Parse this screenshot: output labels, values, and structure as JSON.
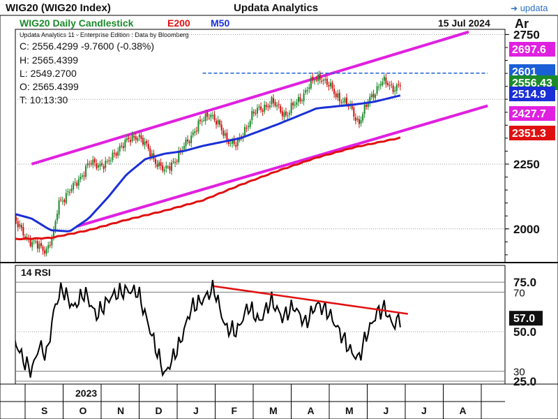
{
  "window": {
    "title": "WIG20 (WIG20 Index)",
    "app_name": "Updata Analytics",
    "brand": "updata",
    "brand_icon": "updata-arrow-icon"
  },
  "header": {
    "chart_title": "WIG20 Daily Candlestick",
    "ema_label": "E200",
    "ma_label": "M50",
    "date": "15 Jul 2024",
    "axis_unit": "Ar",
    "source": "Updata Analytics 11 - Enterprise Edition : Data by Bloomberg"
  },
  "ohlc": {
    "close": "C: 2556.4299  -9.7600 (-0.38%)",
    "high": "H: 2565.4399",
    "low": "L: 2549.2700",
    "open": "O: 2565.4399",
    "time": "T: 10:13:30"
  },
  "price_tags": [
    {
      "label": "2697.6",
      "color": "#e020e0",
      "text_color": "#ffffff",
      "value": 2697.6
    },
    {
      "label": "2601",
      "color": "#1a5fd6",
      "text_color": "#ffffff",
      "value": 2601
    },
    {
      "label": "2556.43",
      "color": "#1a8a2a",
      "text_color": "#ffffff",
      "value": 2556.43
    },
    {
      "label": "2514.9",
      "color": "#1a2fd6",
      "text_color": "#ffffff",
      "value": 2514.9
    },
    {
      "label": "2427.7",
      "color": "#e020e0",
      "text_color": "#ffffff",
      "value": 2427.7
    },
    {
      "label": "2351.3",
      "color": "#e01010",
      "text_color": "#ffffff",
      "value": 2351.3
    }
  ],
  "rsi_panel": {
    "label": "14 RSI",
    "tag": "57.0",
    "tag_color": "#111111"
  },
  "year_label": "2023",
  "colors": {
    "up": "#1a8a2a",
    "down": "#d01010",
    "ema": "#e01010",
    "ma": "#1a2fd6",
    "channel": "#e020e0",
    "resistance": "#1a5fd6",
    "rsi_trend": "#e01010"
  },
  "chart_data": [
    {
      "type": "candlestick",
      "title": "WIG20 Daily Candlestick",
      "y_axis": {
        "ticks": [
          "2750",
          "2250",
          "2000"
        ],
        "tick_values": [
          2750,
          2250,
          2000
        ],
        "ylim": [
          1870,
          2770
        ]
      },
      "x_axis": {
        "month_labels": [
          "S",
          "O",
          "N",
          "D",
          "J",
          "F",
          "M",
          "A",
          "M",
          "J",
          "J",
          "A"
        ]
      },
      "close_anchors": [
        {
          "m": 0,
          "v": 2040
        },
        {
          "m": 0.5,
          "v": 1945
        },
        {
          "m": 0.9,
          "v": 1920
        },
        {
          "m": 1.1,
          "v": 1985
        },
        {
          "m": 1.2,
          "v": 2100
        },
        {
          "m": 1.6,
          "v": 2160
        },
        {
          "m": 2.0,
          "v": 2250
        },
        {
          "m": 2.5,
          "v": 2250
        },
        {
          "m": 2.8,
          "v": 2315
        },
        {
          "m": 3.3,
          "v": 2365
        },
        {
          "m": 3.7,
          "v": 2275
        },
        {
          "m": 4.0,
          "v": 2220
        },
        {
          "m": 4.4,
          "v": 2290
        },
        {
          "m": 4.8,
          "v": 2385
        },
        {
          "m": 5.2,
          "v": 2450
        },
        {
          "m": 5.6,
          "v": 2355
        },
        {
          "m": 5.9,
          "v": 2320
        },
        {
          "m": 6.3,
          "v": 2440
        },
        {
          "m": 6.8,
          "v": 2490
        },
        {
          "m": 7.2,
          "v": 2440
        },
        {
          "m": 7.6,
          "v": 2510
        },
        {
          "m": 7.9,
          "v": 2570
        },
        {
          "m": 8.1,
          "v": 2590
        },
        {
          "m": 8.5,
          "v": 2520
        },
        {
          "m": 8.9,
          "v": 2465
        },
        {
          "m": 9.1,
          "v": 2410
        },
        {
          "m": 9.4,
          "v": 2500
        },
        {
          "m": 9.7,
          "v": 2570
        },
        {
          "m": 10.0,
          "v": 2545
        },
        {
          "m": 10.2,
          "v": 2556
        }
      ],
      "series": [
        {
          "name": "E200",
          "points": [
            {
              "m": 0,
              "v": 1960
            },
            {
              "m": 1,
              "v": 1965
            },
            {
              "m": 2,
              "v": 1995
            },
            {
              "m": 3,
              "v": 2035
            },
            {
              "m": 4,
              "v": 2070
            },
            {
              "m": 5,
              "v": 2110
            },
            {
              "m": 6,
              "v": 2170
            },
            {
              "m": 7,
              "v": 2225
            },
            {
              "m": 8,
              "v": 2275
            },
            {
              "m": 9,
              "v": 2315
            },
            {
              "m": 10.2,
              "v": 2351.3
            }
          ]
        },
        {
          "name": "M50",
          "points": [
            {
              "m": 0,
              "v": 2060
            },
            {
              "m": 0.5,
              "v": 2040
            },
            {
              "m": 1,
              "v": 1995
            },
            {
              "m": 1.5,
              "v": 1990
            },
            {
              "m": 2,
              "v": 2040
            },
            {
              "m": 2.5,
              "v": 2120
            },
            {
              "m": 3,
              "v": 2210
            },
            {
              "m": 3.5,
              "v": 2270
            },
            {
              "m": 4,
              "v": 2290
            },
            {
              "m": 4.5,
              "v": 2300
            },
            {
              "m": 5,
              "v": 2320
            },
            {
              "m": 6,
              "v": 2350
            },
            {
              "m": 7,
              "v": 2405
            },
            {
              "m": 8,
              "v": 2465
            },
            {
              "m": 9,
              "v": 2480
            },
            {
              "m": 9.5,
              "v": 2490
            },
            {
              "m": 10.2,
              "v": 2514.9
            }
          ]
        }
      ],
      "channel": {
        "upper": [
          {
            "m": 0.5,
            "v": 2250
          },
          {
            "m": 12.0,
            "v": 2760
          }
        ],
        "lower": [
          {
            "m": 1.7,
            "v": 2010
          },
          {
            "m": 12.5,
            "v": 2475
          }
        ]
      },
      "resistance": {
        "v": 2601,
        "from_m": 5.0,
        "to_m": 12.5
      }
    },
    {
      "type": "line",
      "title": "14 RSI",
      "y_axis": {
        "ticks": [
          "75.0",
          "70",
          "50.0",
          "30",
          "25.0"
        ],
        "tick_values": [
          75,
          70,
          50,
          30,
          25
        ],
        "ylim": [
          20,
          80
        ]
      },
      "rsi_anchors": [
        {
          "m": 0,
          "v": 48
        },
        {
          "m": 0.3,
          "v": 35
        },
        {
          "m": 0.5,
          "v": 30
        },
        {
          "m": 0.7,
          "v": 43
        },
        {
          "m": 0.9,
          "v": 38
        },
        {
          "m": 1.1,
          "v": 62
        },
        {
          "m": 1.3,
          "v": 72
        },
        {
          "m": 1.6,
          "v": 62
        },
        {
          "m": 1.9,
          "v": 70
        },
        {
          "m": 2.2,
          "v": 58
        },
        {
          "m": 2.6,
          "v": 68
        },
        {
          "m": 3.0,
          "v": 71
        },
        {
          "m": 3.3,
          "v": 70
        },
        {
          "m": 3.6,
          "v": 52
        },
        {
          "m": 4.0,
          "v": 28
        },
        {
          "m": 4.4,
          "v": 44
        },
        {
          "m": 4.7,
          "v": 62
        },
        {
          "m": 5.0,
          "v": 66
        },
        {
          "m": 5.3,
          "v": 72
        },
        {
          "m": 5.6,
          "v": 52
        },
        {
          "m": 5.9,
          "v": 50
        },
        {
          "m": 6.2,
          "v": 63
        },
        {
          "m": 6.5,
          "v": 55
        },
        {
          "m": 6.8,
          "v": 66
        },
        {
          "m": 7.1,
          "v": 57
        },
        {
          "m": 7.4,
          "v": 63
        },
        {
          "m": 7.7,
          "v": 54
        },
        {
          "m": 8.0,
          "v": 64
        },
        {
          "m": 8.3,
          "v": 60
        },
        {
          "m": 8.6,
          "v": 50
        },
        {
          "m": 8.9,
          "v": 40
        },
        {
          "m": 9.1,
          "v": 36
        },
        {
          "m": 9.3,
          "v": 48
        },
        {
          "m": 9.6,
          "v": 60
        },
        {
          "m": 9.8,
          "v": 62
        },
        {
          "m": 10.0,
          "v": 53
        },
        {
          "m": 10.2,
          "v": 57
        }
      ],
      "trendline": [
        {
          "m": 5.3,
          "v": 73
        },
        {
          "m": 10.4,
          "v": 59
        }
      ]
    }
  ]
}
